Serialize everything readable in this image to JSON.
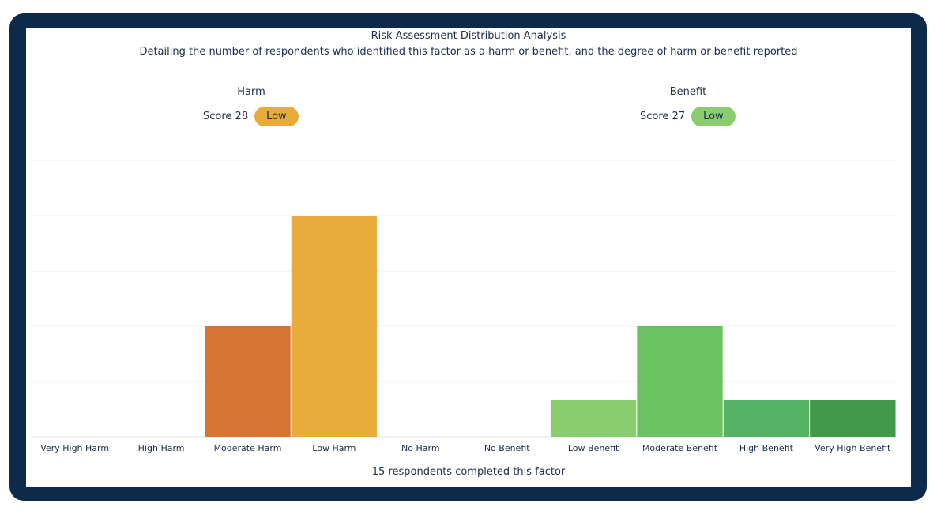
{
  "chart_data": {
    "type": "bar",
    "title": "Risk Assessment Distribution Analysis",
    "subtitle": "Detailing the number of respondents who identified this factor as a harm or benefit, and the degree of harm or benefit reported",
    "categories": [
      "Very High Harm",
      "High Harm",
      "Moderate Harm",
      "Low Harm",
      "No Harm",
      "No Benefit",
      "Low Benefit",
      "Moderate Benefit",
      "High Benefit",
      "Very High Benefit"
    ],
    "values": [
      0,
      0,
      3,
      6,
      0,
      0,
      1,
      3,
      1,
      1
    ],
    "colors": [
      "#c0392b",
      "#d35f2a",
      "#d67434",
      "#e9ac3c",
      "#cccccc",
      "#cccccc",
      "#8acd6f",
      "#6cc163",
      "#55b366",
      "#419a4a"
    ],
    "ylim": [
      0,
      7.5
    ],
    "yticks": [
      0,
      1.5,
      3,
      4.5,
      6,
      7.5
    ],
    "grid": true,
    "xlabel": "",
    "ylabel": ""
  },
  "harm": {
    "label": "Harm",
    "score_text": "Score 28",
    "level": "Low",
    "color": "#e9ac3c"
  },
  "benefit": {
    "label": "Benefit",
    "score_text": "Score 27",
    "level": "Low",
    "color": "#8acd6f"
  },
  "footer": "15 respondents completed this factor"
}
